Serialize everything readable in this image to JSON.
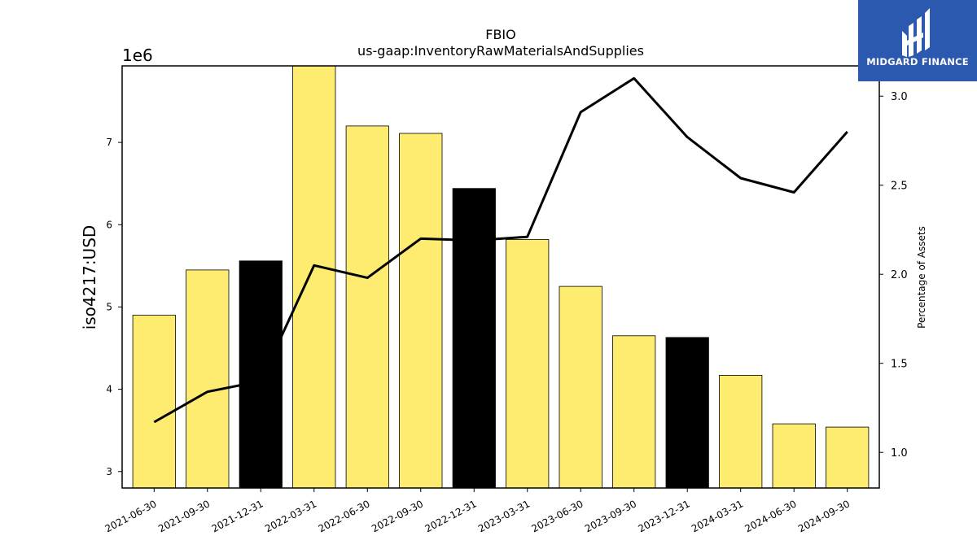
{
  "brand": {
    "name": "MIDGARD FINANCE",
    "color": "#2b59b0"
  },
  "chart_data": {
    "type": "bar",
    "title": "FBIO",
    "subtitle": "us-gaap:InventoryRawMaterialsAndSupplies",
    "ylabel": "iso4217:USD",
    "y_offset_label": "1e6",
    "y2label": "Percentage of Assets",
    "categories": [
      "2021-06-30",
      "2021-09-30",
      "2021-12-31",
      "2022-03-31",
      "2022-06-30",
      "2022-09-30",
      "2022-12-31",
      "2023-03-31",
      "2023-06-30",
      "2023-09-30",
      "2023-12-31",
      "2024-03-31",
      "2024-06-30",
      "2024-09-30"
    ],
    "series": [
      {
        "type": "bar",
        "axis": "left",
        "values": [
          4900000,
          5450000,
          5560000,
          7930000,
          7200000,
          7110000,
          6440000,
          5820000,
          5250000,
          4650000,
          4630000,
          4170000,
          3580000,
          3540000
        ],
        "highlight": [
          false,
          false,
          true,
          false,
          false,
          false,
          true,
          false,
          false,
          false,
          true,
          false,
          false,
          false
        ],
        "color": "#fdec6f",
        "highlight_color": "#000000"
      },
      {
        "type": "line",
        "axis": "right",
        "values": [
          1.17,
          1.34,
          1.4,
          2.05,
          1.98,
          2.2,
          2.19,
          2.21,
          2.91,
          3.1,
          2.77,
          2.54,
          2.46,
          2.8
        ],
        "color": "#000000"
      }
    ],
    "ylim": [
      2800000,
      7930000
    ],
    "y2lim": [
      0.8,
      3.17
    ],
    "yticks": [
      3000000,
      4000000,
      5000000,
      6000000,
      7000000
    ],
    "ytick_labels": [
      "3",
      "4",
      "5",
      "6",
      "7"
    ],
    "y2ticks": [
      1.0,
      1.5,
      2.0,
      2.5,
      3.0
    ],
    "y2tick_labels": [
      "1.0",
      "1.5",
      "2.0",
      "2.5",
      "3.0"
    ],
    "grid": false,
    "legend": "none"
  }
}
